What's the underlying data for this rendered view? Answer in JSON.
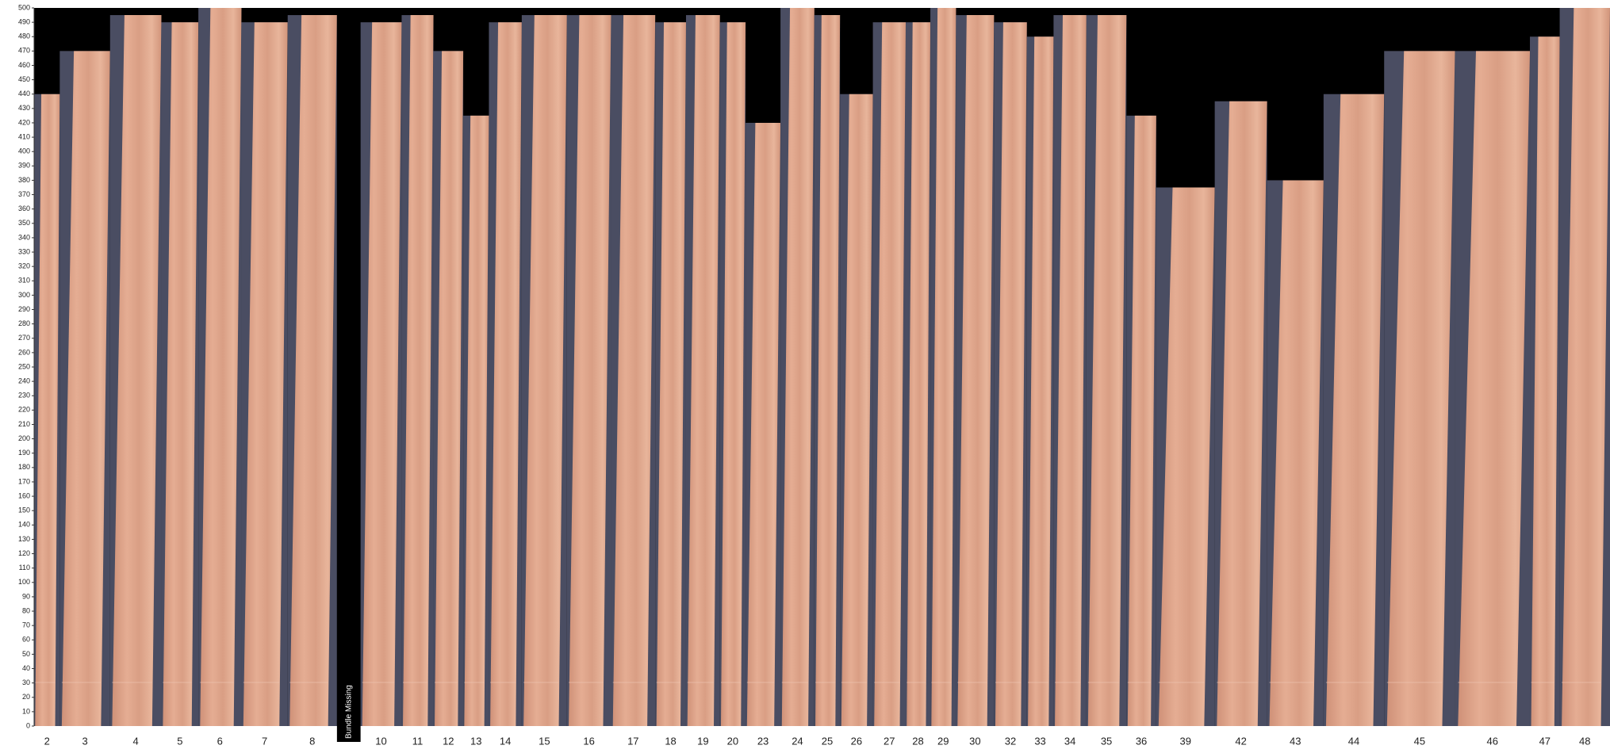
{
  "chart_data": {
    "type": "bar",
    "categories": [
      "2",
      "3",
      "4",
      "5",
      "6",
      "7",
      "8",
      null,
      "10",
      "11",
      "12",
      "13",
      "14",
      "15",
      "16",
      "17",
      "18",
      "19",
      "20",
      "23",
      "24",
      "25",
      "26",
      "27",
      "28",
      "29",
      "30",
      "32",
      "33",
      "34",
      "35",
      "36",
      "39",
      "42",
      "43",
      "44",
      "45",
      "46",
      "47",
      "48"
    ],
    "values": [
      440,
      470,
      495,
      490,
      500,
      490,
      495,
      null,
      490,
      495,
      470,
      425,
      490,
      495,
      495,
      495,
      490,
      495,
      490,
      420,
      500,
      495,
      440,
      490,
      490,
      500,
      495,
      490,
      480,
      495,
      495,
      425,
      375,
      435,
      380,
      440,
      470,
      470,
      480,
      500
    ],
    "missing_label": "Bundle Missing",
    "color": "#dba286",
    "ylim": [
      0,
      500
    ],
    "yticks": [
      0,
      10,
      20,
      30,
      40,
      50,
      60,
      70,
      80,
      90,
      100,
      110,
      120,
      130,
      140,
      150,
      160,
      170,
      180,
      190,
      200,
      210,
      220,
      230,
      240,
      250,
      260,
      270,
      280,
      290,
      300,
      310,
      320,
      330,
      340,
      350,
      360,
      370,
      380,
      390,
      400,
      410,
      420,
      430,
      440,
      450,
      460,
      470,
      480,
      490,
      500
    ]
  }
}
